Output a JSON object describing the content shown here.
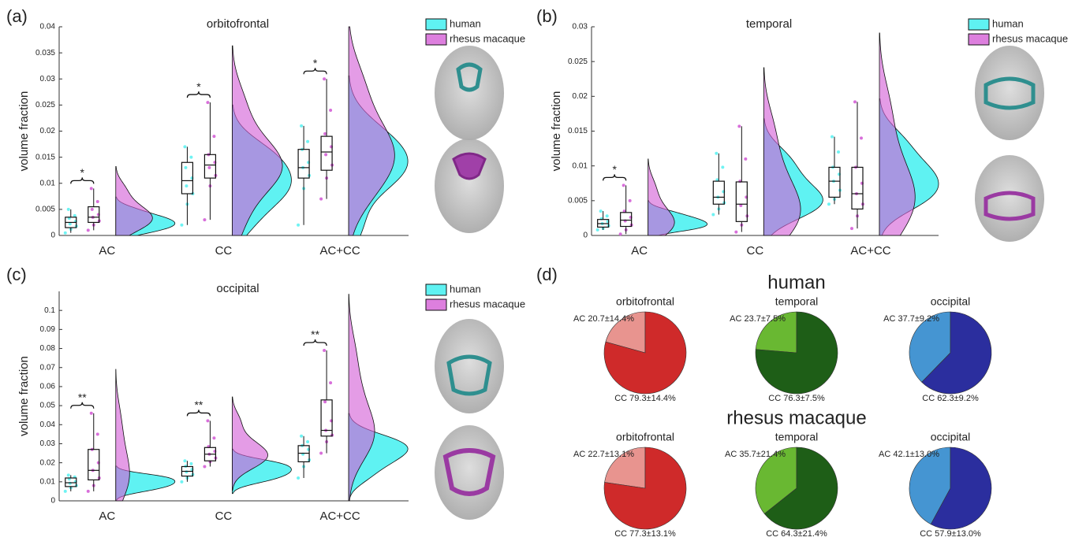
{
  "chart_data": [
    {
      "type": "raincloud",
      "panel_label": "(a)",
      "title": "orbitofrontal",
      "ylabel": "volume fraction",
      "categories": [
        "AC",
        "CC",
        "AC+CC"
      ],
      "ylim": [
        0,
        0.04
      ],
      "yticks": [
        0,
        0.005,
        0.01,
        0.015,
        0.02,
        0.025,
        0.03,
        0.035,
        0.04
      ],
      "series": [
        {
          "name": "human",
          "color": "#5ff2f2",
          "boxes": [
            {
              "min": 0.0005,
              "q1": 0.0015,
              "median": 0.0025,
              "q3": 0.0035,
              "max": 0.005
            },
            {
              "min": 0.002,
              "q1": 0.008,
              "median": 0.0105,
              "q3": 0.014,
              "max": 0.017
            },
            {
              "min": 0.002,
              "q1": 0.011,
              "median": 0.013,
              "q3": 0.0165,
              "max": 0.021
            }
          ],
          "points": [
            [
              0.0005,
              0.0012,
              0.0018,
              0.0022,
              0.0027,
              0.0033,
              0.0038,
              0.005
            ],
            [
              0.002,
              0.006,
              0.008,
              0.0095,
              0.011,
              0.013,
              0.015,
              0.017
            ],
            [
              0.002,
              0.009,
              0.0115,
              0.013,
              0.014,
              0.0165,
              0.018,
              0.021
            ]
          ]
        },
        {
          "name": "rhesus macaque",
          "color": "#d45fd6",
          "boxes": [
            {
              "min": 0.001,
              "q1": 0.0025,
              "median": 0.0035,
              "q3": 0.0055,
              "max": 0.009
            },
            {
              "min": 0.003,
              "q1": 0.011,
              "median": 0.0135,
              "q3": 0.0155,
              "max": 0.0255
            },
            {
              "min": 0.007,
              "q1": 0.0125,
              "median": 0.016,
              "q3": 0.019,
              "max": 0.03
            }
          ],
          "points": [
            [
              0.001,
              0.002,
              0.0028,
              0.0035,
              0.004,
              0.005,
              0.0065,
              0.009
            ],
            [
              0.003,
              0.0095,
              0.0115,
              0.013,
              0.014,
              0.0155,
              0.019,
              0.0255
            ],
            [
              0.007,
              0.011,
              0.0135,
              0.0155,
              0.017,
              0.0195,
              0.024,
              0.03
            ]
          ]
        }
      ],
      "annotations": [
        {
          "text": "*",
          "category": 0
        },
        {
          "text": "*",
          "category": 1
        },
        {
          "text": "*",
          "category": 2
        }
      ],
      "legend": "outside-right"
    },
    {
      "type": "raincloud",
      "panel_label": "(b)",
      "title": "temporal",
      "ylabel": "volume fraction",
      "categories": [
        "AC",
        "CC",
        "AC+CC"
      ],
      "ylim": [
        0,
        0.03
      ],
      "yticks": [
        0,
        0.005,
        0.01,
        0.015,
        0.02,
        0.025,
        0.03
      ],
      "series": [
        {
          "name": "human",
          "color": "#5ff2f2",
          "boxes": [
            {
              "min": 0.0008,
              "q1": 0.0012,
              "median": 0.0017,
              "q3": 0.0023,
              "max": 0.0035
            },
            {
              "min": 0.003,
              "q1": 0.0045,
              "median": 0.0055,
              "q3": 0.0078,
              "max": 0.0118
            },
            {
              "min": 0.0045,
              "q1": 0.0055,
              "median": 0.0078,
              "q3": 0.0098,
              "max": 0.0142
            }
          ],
          "points": [
            [
              0.0008,
              0.001,
              0.0014,
              0.0017,
              0.002,
              0.0024,
              0.0028,
              0.0035
            ],
            [
              0.003,
              0.0038,
              0.0047,
              0.0055,
              0.0063,
              0.008,
              0.0098,
              0.0118
            ],
            [
              0.0045,
              0.0052,
              0.0065,
              0.0078,
              0.0088,
              0.0098,
              0.012,
              0.0142
            ]
          ]
        },
        {
          "name": "rhesus macaque",
          "color": "#d45fd6",
          "boxes": [
            {
              "min": 0.0002,
              "q1": 0.0013,
              "median": 0.0022,
              "q3": 0.0033,
              "max": 0.0072
            },
            {
              "min": 0.0005,
              "q1": 0.002,
              "median": 0.0045,
              "q3": 0.0077,
              "max": 0.0157
            },
            {
              "min": 0.001,
              "q1": 0.0038,
              "median": 0.006,
              "q3": 0.0098,
              "max": 0.0192
            }
          ],
          "points": [
            [
              0.0002,
              0.0008,
              0.0015,
              0.0021,
              0.0026,
              0.0035,
              0.005,
              0.0072
            ],
            [
              0.0005,
              0.0015,
              0.0028,
              0.0043,
              0.0055,
              0.0078,
              0.011,
              0.0157
            ],
            [
              0.001,
              0.0028,
              0.0045,
              0.006,
              0.0075,
              0.0098,
              0.014,
              0.0192
            ]
          ]
        }
      ],
      "annotations": [
        {
          "text": "*",
          "category": 0
        }
      ],
      "legend": "outside-right"
    },
    {
      "type": "raincloud",
      "panel_label": "(c)",
      "title": "occipital",
      "ylabel": "volume fraction",
      "categories": [
        "AC",
        "CC",
        "AC+CC"
      ],
      "ylim": [
        0,
        0.11
      ],
      "yticks": [
        0,
        0.01,
        0.02,
        0.03,
        0.04,
        0.05,
        0.06,
        0.07,
        0.08,
        0.09,
        0.1
      ],
      "series": [
        {
          "name": "human",
          "color": "#5ff2f2",
          "boxes": [
            {
              "min": 0.005,
              "q1": 0.0075,
              "median": 0.0095,
              "q3": 0.012,
              "max": 0.0135
            },
            {
              "min": 0.01,
              "q1": 0.013,
              "median": 0.0155,
              "q3": 0.018,
              "max": 0.021
            },
            {
              "min": 0.012,
              "q1": 0.0205,
              "median": 0.025,
              "q3": 0.029,
              "max": 0.034
            }
          ],
          "points": [
            [
              0.005,
              0.0068,
              0.008,
              0.0092,
              0.0101,
              0.0115,
              0.0125,
              0.0135
            ],
            [
              0.01,
              0.012,
              0.0138,
              0.0152,
              0.0165,
              0.0182,
              0.0195,
              0.021
            ],
            [
              0.012,
              0.018,
              0.0215,
              0.0245,
              0.027,
              0.029,
              0.031,
              0.034
            ]
          ]
        },
        {
          "name": "rhesus macaque",
          "color": "#d45fd6",
          "boxes": [
            {
              "min": 0.005,
              "q1": 0.011,
              "median": 0.016,
              "q3": 0.027,
              "max": 0.046
            },
            {
              "min": 0.018,
              "q1": 0.021,
              "median": 0.0245,
              "q3": 0.028,
              "max": 0.042
            },
            {
              "min": 0.025,
              "q1": 0.034,
              "median": 0.037,
              "q3": 0.053,
              "max": 0.079
            }
          ],
          "points": [
            [
              0.005,
              0.008,
              0.012,
              0.016,
              0.02,
              0.027,
              0.035,
              0.046
            ],
            [
              0.018,
              0.0205,
              0.0225,
              0.0245,
              0.026,
              0.0285,
              0.033,
              0.042
            ],
            [
              0.025,
              0.031,
              0.0345,
              0.037,
              0.042,
              0.052,
              0.062,
              0.079
            ]
          ]
        }
      ],
      "annotations": [
        {
          "text": "**",
          "category": 0
        },
        {
          "text": "**",
          "category": 1
        },
        {
          "text": "**",
          "category": 2
        }
      ],
      "legend": "outside-right"
    },
    {
      "type": "pie",
      "group": 0,
      "title": "orbitofrontal",
      "values": [
        20.7,
        79.3
      ],
      "value_labels": [
        "AC 20.7±14.4%",
        "CC 79.3±14.4%"
      ],
      "colors": [
        "#e8948f",
        "#cf2a2a"
      ]
    },
    {
      "type": "pie",
      "group": 0,
      "title": "temporal",
      "values": [
        23.7,
        76.3
      ],
      "value_labels": [
        "AC 23.7±7.5%",
        "CC 76.3±7.5%"
      ],
      "colors": [
        "#69b832",
        "#1e5e17"
      ]
    },
    {
      "type": "pie",
      "group": 0,
      "title": "occipital",
      "values": [
        37.7,
        62.3
      ],
      "value_labels": [
        "AC 37.7±9.2%",
        "CC 62.3±9.2%"
      ],
      "colors": [
        "#4595d2",
        "#2b2e9e"
      ]
    },
    {
      "type": "pie",
      "group": 1,
      "title": "orbitofrontal",
      "values": [
        22.7,
        77.3
      ],
      "value_labels": [
        "AC 22.7±13.1%",
        "CC 77.3±13.1%"
      ],
      "colors": [
        "#e8948f",
        "#cf2a2a"
      ]
    },
    {
      "type": "pie",
      "group": 1,
      "title": "temporal",
      "values": [
        35.7,
        64.3
      ],
      "value_labels": [
        "AC 35.7±21.4%",
        "CC 64.3±21.4%"
      ],
      "colors": [
        "#69b832",
        "#1e5e17"
      ]
    },
    {
      "type": "pie",
      "group": 1,
      "title": "occipital",
      "values": [
        42.1,
        57.9
      ],
      "value_labels": [
        "AC 42.1±13.0%",
        "CC 57.9±13.0%"
      ],
      "colors": [
        "#4595d2",
        "#2b2e9e"
      ]
    }
  ],
  "panel_d": {
    "label": "(d)",
    "groups": [
      "human",
      "rhesus macaque"
    ]
  }
}
